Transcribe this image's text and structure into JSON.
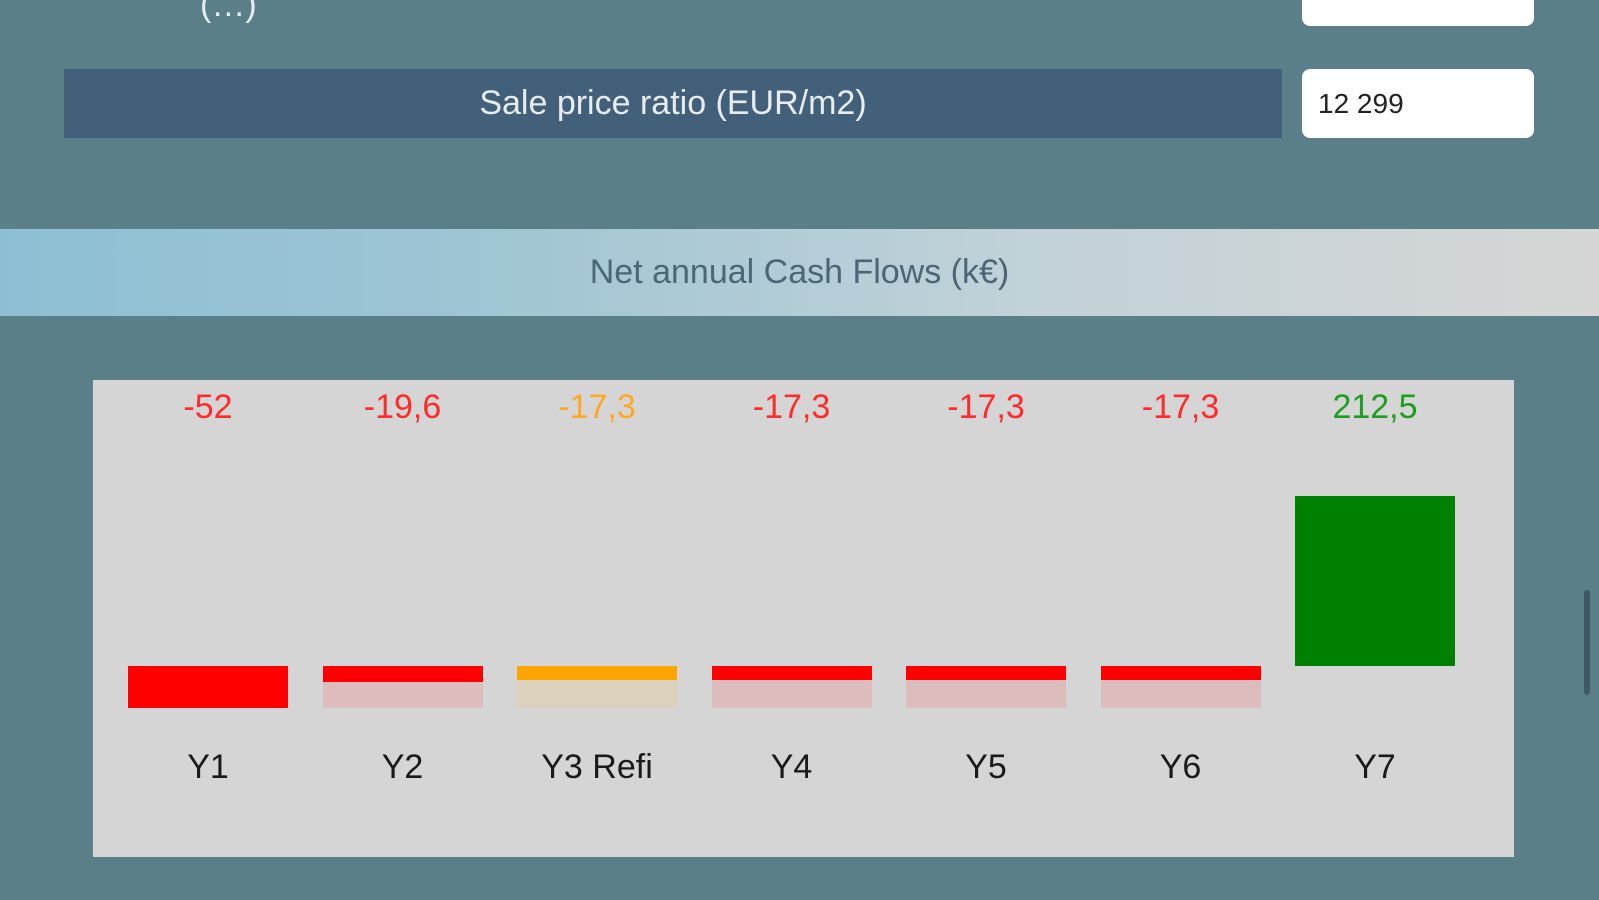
{
  "form": {
    "previous_label": "(…)",
    "sale_price_ratio_label": "Sale price ratio (EUR/m2)",
    "sale_price_ratio_value": "12 299"
  },
  "section": {
    "title": "Net annual Cash Flows (k€)"
  },
  "colors": {
    "negative": "#ff0000",
    "refi": "#ffa500",
    "positive": "#008000",
    "negative_ghost": "#dcbcbc",
    "refi_ghost": "#dcd2bc"
  },
  "chart_data": {
    "type": "bar",
    "title": "Net annual Cash Flows (k€)",
    "categories": [
      "Y1",
      "Y2",
      "Y3 Refi",
      "Y4",
      "Y5",
      "Y6",
      "Y7"
    ],
    "values": [
      -52,
      -19.6,
      -17.3,
      -17.3,
      -17.3,
      -17.3,
      212.5
    ],
    "value_labels": [
      "-52",
      "-19,6",
      "-17,3",
      "-17,3",
      "-17,3",
      "-17,3",
      "212,5"
    ],
    "label_colors": [
      "#ff2a2a",
      "#ff2a2a",
      "#ffa726",
      "#ff2a2a",
      "#ff2a2a",
      "#ff2a2a",
      "#1e9e1e"
    ],
    "bar_colors": [
      "#ff0000",
      "#ff0000",
      "#ffa500",
      "#ff0000",
      "#ff0000",
      "#ff0000",
      "#008000"
    ],
    "xlabel": "",
    "ylabel": "",
    "grid": false
  }
}
